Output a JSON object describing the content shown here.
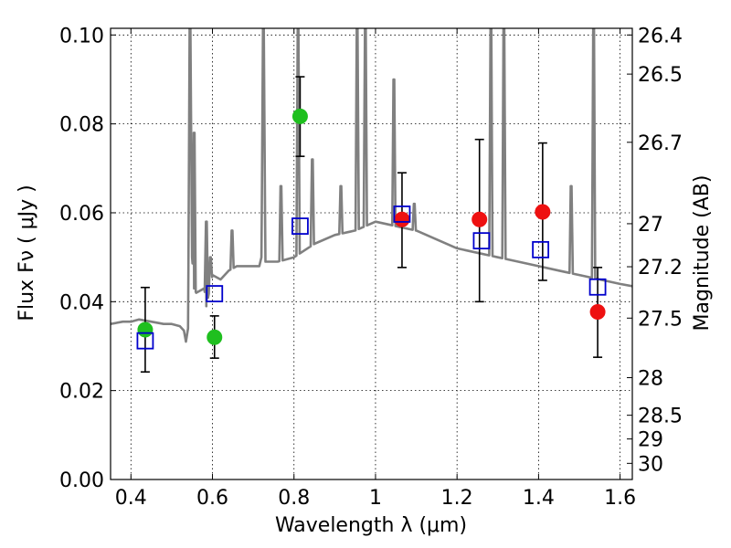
{
  "chart_data": {
    "type": "scatter",
    "xlabel": "Wavelength  λ (μm)",
    "ylabel": "Flux  Fν  ( μJy )",
    "y2label": "Magnitude (AB)",
    "xlim": [
      0.35,
      1.63
    ],
    "ylim": [
      0.0,
      0.1015
    ],
    "grid": true,
    "x_ticks": [
      0.4,
      0.6,
      0.8,
      1.0,
      1.2,
      1.4,
      1.6
    ],
    "x_tick_labels": [
      "0.4",
      "0.6",
      "0.8",
      "1",
      "1.2",
      "1.4",
      "1.6"
    ],
    "y_ticks": [
      0.0,
      0.02,
      0.04,
      0.06,
      0.08,
      0.1
    ],
    "y_tick_labels": [
      "0.00",
      "0.02",
      "0.04",
      "0.06",
      "0.08",
      "0.10"
    ],
    "mag_ticks": [
      "26.4",
      "26.5",
      "26.7",
      "27",
      "27.2",
      "27.5",
      "28",
      "28.5",
      "29",
      "30"
    ],
    "colors": {
      "green": "#1fbf1f",
      "red": "#ee1111",
      "blue": "#0000cc",
      "spectrum": "#808080",
      "errorbar": "#000000"
    },
    "series": [
      {
        "name": "spectrum",
        "kind": "line",
        "x": [
          0.35,
          0.38,
          0.4,
          0.42,
          0.45,
          0.48,
          0.5,
          0.52,
          0.53,
          0.535,
          0.54,
          0.545,
          0.55,
          0.555,
          0.56,
          0.58,
          0.585,
          0.6,
          0.62,
          0.64,
          0.66,
          0.7,
          0.715,
          0.72,
          0.725,
          0.73,
          0.76,
          0.8,
          0.85,
          0.9,
          0.95,
          1.0,
          1.05,
          1.1,
          1.15,
          1.2,
          1.25,
          1.3,
          1.35,
          1.4,
          1.45,
          1.5,
          1.55,
          1.6,
          1.63
        ],
        "y": [
          0.035,
          0.0355,
          0.0355,
          0.036,
          0.0355,
          0.035,
          0.035,
          0.0345,
          0.0335,
          0.031,
          0.034,
          0.1015,
          0.05,
          0.043,
          0.042,
          0.043,
          0.039,
          0.046,
          0.045,
          0.047,
          0.048,
          0.048,
          0.048,
          0.05,
          0.1015,
          0.049,
          0.049,
          0.05,
          0.053,
          0.055,
          0.056,
          0.058,
          0.057,
          0.056,
          0.054,
          0.052,
          0.051,
          0.05,
          0.049,
          0.048,
          0.047,
          0.046,
          0.045,
          0.044,
          0.0435
        ],
        "peaks": [
          {
            "x": 0.545,
            "y": 0.1015
          },
          {
            "x": 0.555,
            "y": 0.078
          },
          {
            "x": 0.585,
            "y": 0.058
          },
          {
            "x": 0.595,
            "y": 0.05
          },
          {
            "x": 0.648,
            "y": 0.056
          },
          {
            "x": 0.725,
            "y": 0.1015
          },
          {
            "x": 0.768,
            "y": 0.066
          },
          {
            "x": 0.81,
            "y": 0.1015
          },
          {
            "x": 0.845,
            "y": 0.072
          },
          {
            "x": 0.915,
            "y": 0.066
          },
          {
            "x": 0.955,
            "y": 0.1015
          },
          {
            "x": 0.975,
            "y": 0.1015
          },
          {
            "x": 1.045,
            "y": 0.09
          },
          {
            "x": 1.095,
            "y": 0.062
          },
          {
            "x": 1.283,
            "y": 0.1015
          },
          {
            "x": 1.315,
            "y": 0.1015
          },
          {
            "x": 1.48,
            "y": 0.066
          },
          {
            "x": 1.535,
            "y": 0.1015
          }
        ]
      },
      {
        "name": "green points",
        "kind": "marker-circle",
        "color": "green",
        "x": [
          0.435,
          0.605,
          0.815
        ],
        "y": [
          0.0337,
          0.032,
          0.0817
        ],
        "yerr_low": [
          0.0242,
          0.0273,
          0.0727
        ],
        "yerr_high": [
          0.0432,
          0.0368,
          0.0906
        ]
      },
      {
        "name": "red points",
        "kind": "marker-circle",
        "color": "red",
        "x": [
          1.065,
          1.255,
          1.41,
          1.545
        ],
        "y": [
          0.0585,
          0.0585,
          0.0602,
          0.0377
        ],
        "yerr_low": [
          0.0477,
          0.04,
          0.0448,
          0.0275
        ],
        "yerr_high": [
          0.069,
          0.0765,
          0.0757,
          0.0477
        ]
      },
      {
        "name": "blue squares",
        "kind": "marker-square-open",
        "color": "blue",
        "x": [
          0.435,
          0.605,
          0.815,
          1.065,
          1.26,
          1.405,
          1.545
        ],
        "y": [
          0.0312,
          0.0418,
          0.057,
          0.0597,
          0.0537,
          0.0517,
          0.0433
        ]
      }
    ]
  }
}
